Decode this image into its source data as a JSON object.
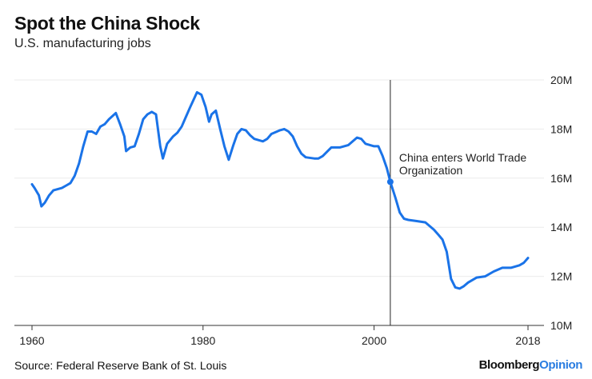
{
  "chart_data": {
    "type": "line",
    "title": "Spot the China Shock",
    "subtitle": "U.S. manufacturing jobs",
    "xlabel": "",
    "ylabel": "",
    "xlim": [
      1960,
      2018
    ],
    "ylim": [
      10,
      20
    ],
    "x_ticks": [
      1960,
      1980,
      2000,
      2018
    ],
    "x_tick_labels": [
      "1960",
      "1980",
      "2000",
      "2018"
    ],
    "y_ticks": [
      10,
      12,
      14,
      16,
      18,
      20
    ],
    "y_tick_labels": [
      "10M",
      "12M",
      "14M",
      "16M",
      "18M",
      "20M"
    ],
    "grid": "horizontal",
    "series": [
      {
        "name": "U.S. manufacturing jobs (millions)",
        "color": "#1a73e8",
        "x": [
          1960,
          1960.3,
          1960.8,
          1961.1,
          1961.5,
          1962,
          1962.5,
          1963,
          1963.5,
          1964,
          1964.5,
          1965,
          1965.5,
          1966,
          1966.5,
          1967,
          1967.5,
          1968,
          1968.5,
          1969,
          1969.8,
          1970.3,
          1970.8,
          1971,
          1971.5,
          1972,
          1972.5,
          1973,
          1973.5,
          1974,
          1974.5,
          1975,
          1975.3,
          1975.8,
          1976.5,
          1977,
          1977.5,
          1978,
          1978.5,
          1979.3,
          1979.8,
          1980.3,
          1980.7,
          1981,
          1981.5,
          1982,
          1982.5,
          1983,
          1983.5,
          1984,
          1984.5,
          1985,
          1985.5,
          1986,
          1987,
          1987.5,
          1988,
          1989,
          1989.5,
          1990,
          1990.5,
          1991,
          1991.5,
          1992,
          1993,
          1993.5,
          1994,
          1995,
          1996,
          1997,
          1998,
          1998.5,
          1999,
          2000,
          2000.5,
          2001,
          2001.5,
          2001.9,
          2002.5,
          2003,
          2003.5,
          2004,
          2005,
          2006,
          2007,
          2007.5,
          2008,
          2008.5,
          2009,
          2009.5,
          2010,
          2010.5,
          2011,
          2012,
          2013,
          2014,
          2015,
          2016,
          2017,
          2017.5,
          2018
        ],
        "values": [
          15.75,
          15.6,
          15.3,
          14.85,
          15.0,
          15.3,
          15.5,
          15.55,
          15.6,
          15.7,
          15.8,
          16.1,
          16.6,
          17.3,
          17.9,
          17.9,
          17.8,
          18.1,
          18.2,
          18.4,
          18.65,
          18.2,
          17.7,
          17.1,
          17.25,
          17.3,
          17.8,
          18.4,
          18.6,
          18.7,
          18.6,
          17.3,
          16.8,
          17.4,
          17.7,
          17.85,
          18.1,
          18.5,
          18.9,
          19.5,
          19.4,
          18.9,
          18.3,
          18.6,
          18.75,
          18.0,
          17.3,
          16.75,
          17.3,
          17.8,
          18.0,
          17.95,
          17.75,
          17.6,
          17.5,
          17.6,
          17.8,
          17.95,
          18.0,
          17.9,
          17.7,
          17.3,
          17.0,
          16.85,
          16.8,
          16.8,
          16.9,
          17.25,
          17.25,
          17.35,
          17.65,
          17.6,
          17.4,
          17.3,
          17.3,
          16.9,
          16.4,
          15.85,
          15.2,
          14.6,
          14.35,
          14.3,
          14.25,
          14.2,
          13.9,
          13.7,
          13.5,
          13.0,
          11.9,
          11.55,
          11.5,
          11.6,
          11.75,
          11.95,
          12.0,
          12.2,
          12.35,
          12.35,
          12.45,
          12.55,
          12.75
        ]
      }
    ],
    "annotation": {
      "x": 2001.9,
      "y": 15.85,
      "line1": "China enters World Trade",
      "line2": "Organization"
    }
  },
  "source": "Source: Federal Reserve Bank of St. Louis",
  "logo": {
    "part1": "Bloomberg",
    "part2": "Opinion"
  }
}
